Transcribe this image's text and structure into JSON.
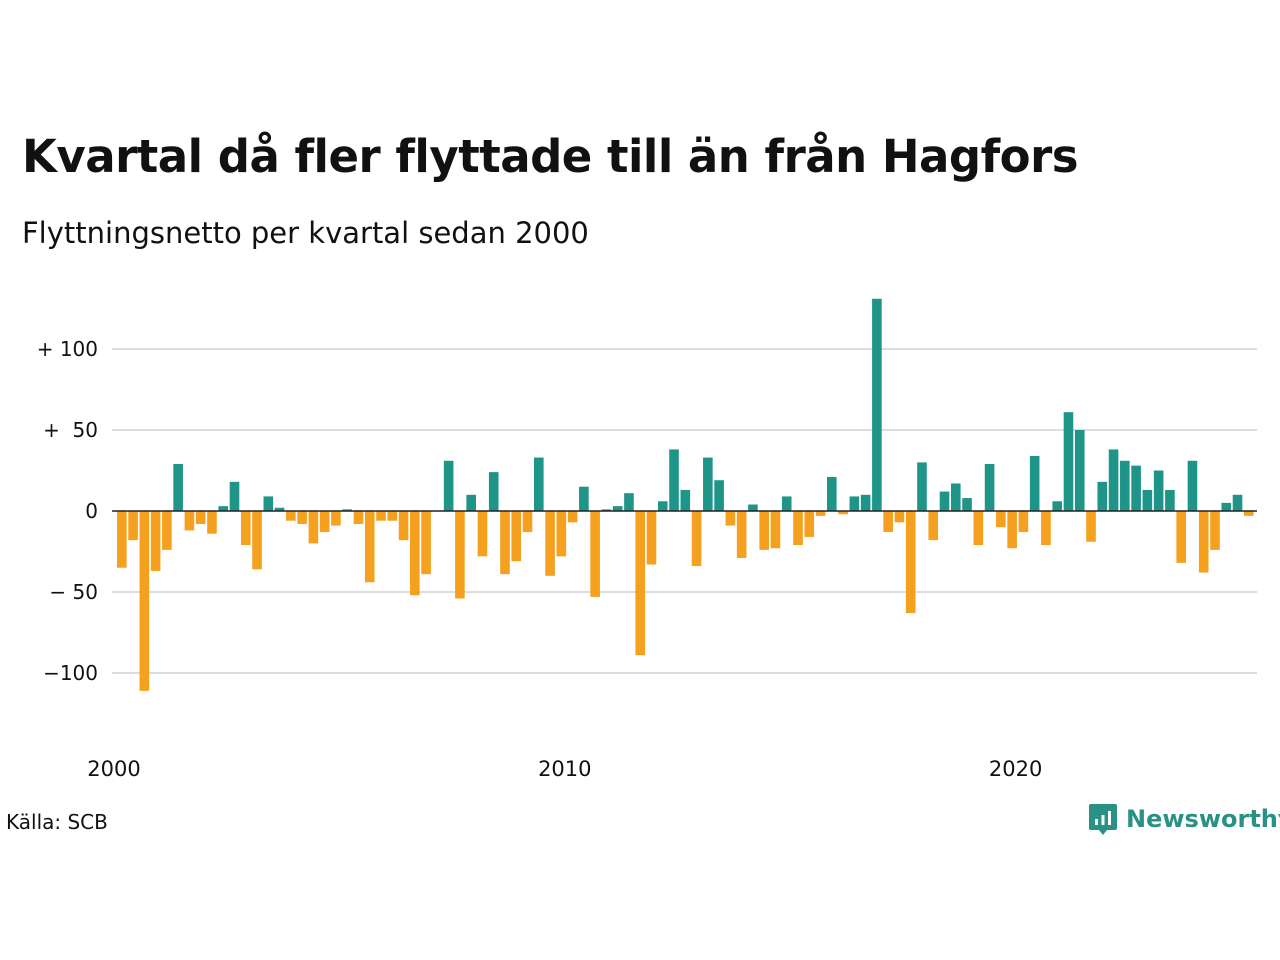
{
  "header": {
    "title": "Kvartal då fler flyttade till än från Hagfors",
    "subtitle": "Flyttningsnetto per kvartal sedan 2000"
  },
  "footer": {
    "source": "Källa: SCB",
    "brand": "Newsworthy"
  },
  "colors": {
    "positive": "#1f9488",
    "negative": "#f5a01e",
    "grid": "#dddddd",
    "brand": "#2a9185"
  },
  "chart_data": {
    "type": "bar",
    "start_year": 2000,
    "ylim": [
      -125,
      135
    ],
    "yticks": [
      {
        "value": 100,
        "label": "+ 100"
      },
      {
        "value": 50,
        "label": "+  50"
      },
      {
        "value": 0,
        "label": "0"
      },
      {
        "value": -50,
        "label": "− 50"
      },
      {
        "value": -100,
        "label": "−100"
      }
    ],
    "xticks": [
      {
        "year": 2000,
        "label": "2000"
      },
      {
        "year": 2010,
        "label": "2010"
      },
      {
        "year": 2020,
        "label": "2020"
      }
    ],
    "grid": true,
    "values": [
      -35,
      -18,
      -111,
      -37,
      -24,
      29,
      -12,
      -8,
      -14,
      3,
      18,
      -21,
      -36,
      9,
      2,
      -6,
      -8,
      -20,
      -13,
      -9,
      1,
      -8,
      -44,
      -6,
      -6,
      -18,
      -52,
      -39,
      0,
      31,
      -54,
      10,
      -28,
      24,
      -39,
      -31,
      -13,
      33,
      -40,
      -28,
      -7,
      15,
      -53,
      1,
      3,
      11,
      -89,
      -33,
      6,
      38,
      13,
      -34,
      33,
      19,
      -9,
      -29,
      4,
      -24,
      -23,
      9,
      -21,
      -16,
      -3,
      21,
      -2,
      9,
      10,
      131,
      -13,
      -7,
      -63,
      30,
      -18,
      12,
      17,
      8,
      -21,
      29,
      -10,
      -23,
      -13,
      34,
      -21,
      6,
      61,
      50,
      -19,
      18,
      38,
      31,
      28,
      13,
      25,
      13,
      -32,
      31,
      -38,
      -24,
      5,
      10,
      -3
    ]
  }
}
